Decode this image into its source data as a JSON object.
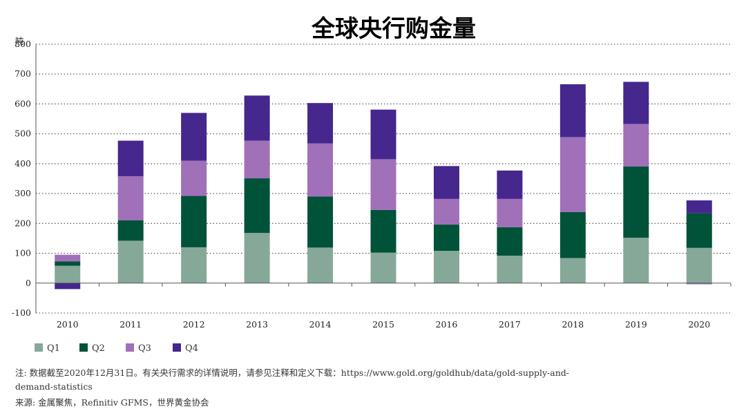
{
  "page": {
    "footnote": "注: 数据截至2020年12月31日。有关央行需求的详情说明，请参见注释和定义下载：https://www.gold.org/goldhub/data/gold-supply-and-demand-statistics",
    "source": "来源: 金属聚焦，Refinitiv GFMS，世界黄金协会"
  },
  "chart_data": {
    "type": "bar",
    "stacked": true,
    "title": "全球央行购金量",
    "ylabel": "吨",
    "xlabel": "",
    "ylim": [
      -100,
      800
    ],
    "yticks": [
      -100,
      0,
      100,
      200,
      300,
      400,
      500,
      600,
      700,
      800
    ],
    "grid": "horizontal dotted",
    "legend_position": "bottom-left",
    "categories": [
      "2010",
      "2011",
      "2012",
      "2013",
      "2014",
      "2015",
      "2016",
      "2017",
      "2018",
      "2019",
      "2020"
    ],
    "series": [
      {
        "name": "Q1",
        "color": "#86a899",
        "values": [
          58,
          142,
          120,
          168,
          119,
          102,
          108,
          92,
          84,
          152,
          118
        ]
      },
      {
        "name": "Q2",
        "color": "#005239",
        "values": [
          15,
          68,
          172,
          183,
          171,
          143,
          88,
          95,
          154,
          239,
          116
        ]
      },
      {
        "name": "Q3",
        "color": "#a070b8",
        "values": [
          22,
          148,
          118,
          126,
          178,
          170,
          86,
          95,
          251,
          142,
          -4
        ]
      },
      {
        "name": "Q4",
        "color": "#45278e",
        "values": [
          -20,
          119,
          160,
          151,
          135,
          166,
          110,
          95,
          177,
          141,
          43
        ]
      }
    ]
  }
}
